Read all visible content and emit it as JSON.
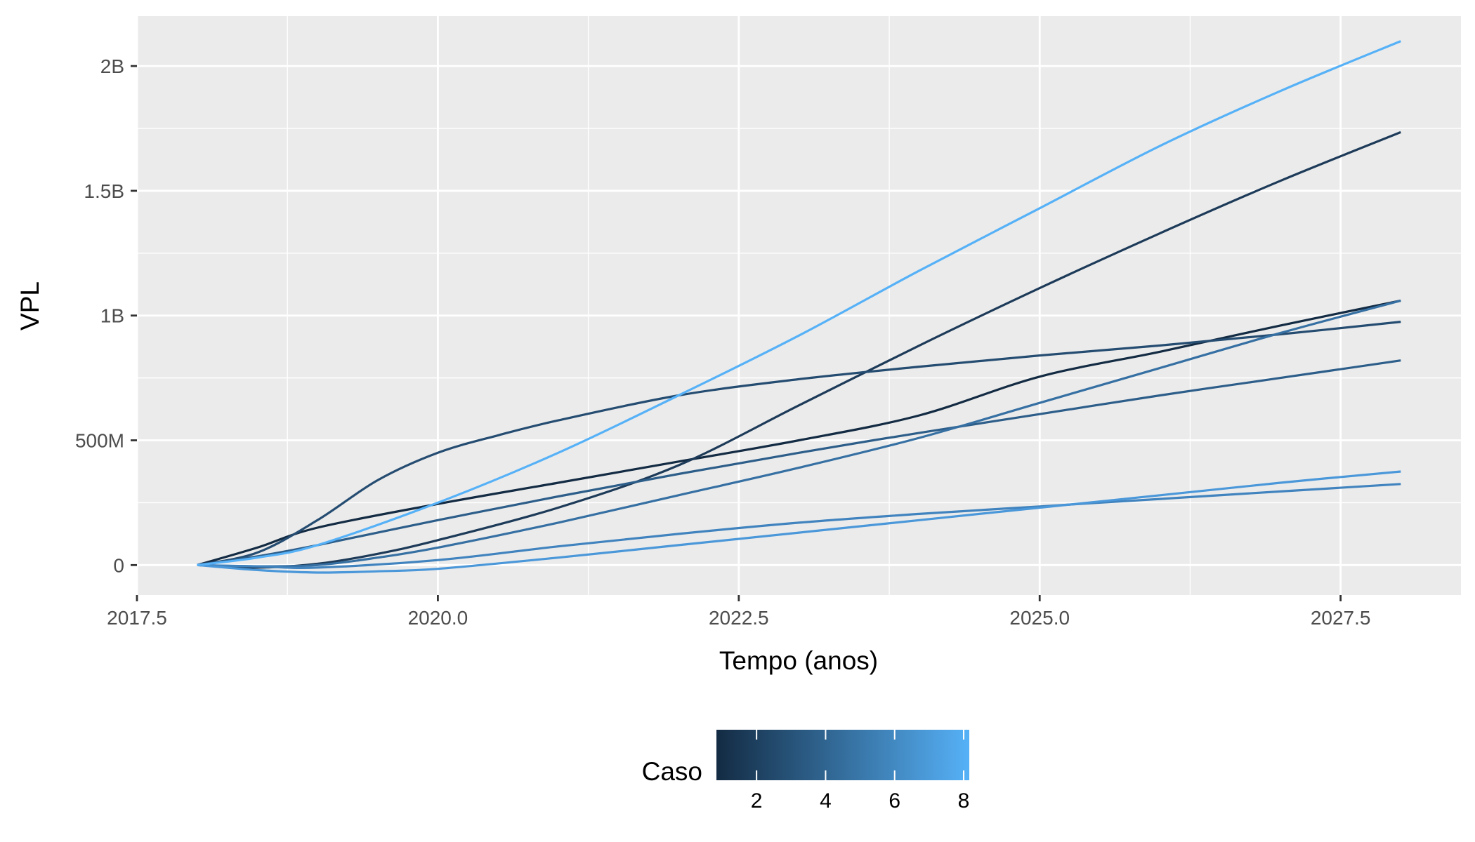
{
  "chart_data": {
    "type": "line",
    "title": "",
    "xlabel": "Tempo (anos)",
    "ylabel": "VPL",
    "xlim": [
      2017.5,
      2028.5
    ],
    "ylim": [
      -120000000,
      2200000000
    ],
    "x_ticks": [
      2017.5,
      2020.0,
      2022.5,
      2025.0,
      2027.5
    ],
    "x_tick_labels": [
      "2017.5",
      "2020.0",
      "2022.5",
      "2025.0",
      "2027.5"
    ],
    "x_minor": [
      2018.75,
      2021.25,
      2023.75,
      2026.25
    ],
    "y_ticks": [
      0,
      500000000,
      1000000000,
      1500000000,
      2000000000
    ],
    "y_tick_labels": [
      "0",
      "500M",
      "1B",
      "1.5B",
      "2B"
    ],
    "y_minor": [
      250000000,
      750000000,
      1250000000,
      1750000000
    ],
    "grid": true,
    "panel_background": "#ebebeb",
    "legend": {
      "title": "Caso",
      "type": "colorbar",
      "position": "bottom",
      "range": [
        1,
        8
      ],
      "ticks": [
        2,
        4,
        6,
        8
      ],
      "tick_labels": [
        "2",
        "4",
        "6",
        "8"
      ],
      "color_low": "#132b43",
      "color_high": "#56b1f7"
    },
    "series": [
      {
        "caso": 1,
        "color": "#132b43",
        "x": [
          2018.0,
          2018.5,
          2019.0,
          2020.0,
          2021.0,
          2022.0,
          2023.0,
          2024.0,
          2025.0,
          2026.0,
          2027.0,
          2028.0
        ],
        "y": [
          0,
          70000000,
          150000000,
          245000000,
          330000000,
          415000000,
          500000000,
          600000000,
          755000000,
          855000000,
          960000000,
          1060000000
        ]
      },
      {
        "caso": 2,
        "color": "#1d3b59",
        "x": [
          2018.0,
          2018.5,
          2019.0,
          2019.5,
          2020.0,
          2021.0,
          2022.0,
          2023.0,
          2024.0,
          2025.0,
          2026.0,
          2027.0,
          2028.0
        ],
        "y": [
          0,
          -10000000,
          5000000,
          45000000,
          100000000,
          230000000,
          400000000,
          640000000,
          880000000,
          1110000000,
          1330000000,
          1540000000,
          1735000000
        ]
      },
      {
        "caso": 3,
        "color": "#254c71",
        "x": [
          2018.0,
          2018.5,
          2019.0,
          2019.5,
          2020.0,
          2020.5,
          2021.0,
          2022.0,
          2023.0,
          2024.0,
          2025.0,
          2026.0,
          2027.0,
          2028.0
        ],
        "y": [
          0,
          50000000,
          180000000,
          340000000,
          450000000,
          520000000,
          580000000,
          680000000,
          745000000,
          795000000,
          840000000,
          880000000,
          925000000,
          975000000
        ]
      },
      {
        "caso": 4,
        "color": "#2d5e8a",
        "x": [
          2018.0,
          2018.5,
          2019.0,
          2020.0,
          2021.0,
          2022.0,
          2023.0,
          2024.0,
          2025.0,
          2026.0,
          2027.0,
          2028.0
        ],
        "y": [
          0,
          35000000,
          80000000,
          180000000,
          275000000,
          365000000,
          450000000,
          530000000,
          605000000,
          680000000,
          750000000,
          820000000
        ]
      },
      {
        "caso": 5,
        "color": "#3670a3",
        "x": [
          2018.0,
          2018.5,
          2019.0,
          2019.5,
          2020.0,
          2021.0,
          2022.0,
          2023.0,
          2024.0,
          2025.0,
          2026.0,
          2027.0,
          2028.0
        ],
        "y": [
          0,
          -5000000,
          0,
          30000000,
          70000000,
          170000000,
          280000000,
          390000000,
          510000000,
          650000000,
          790000000,
          930000000,
          1060000000
        ]
      },
      {
        "caso": 6,
        "color": "#4083be",
        "x": [
          2018.0,
          2018.5,
          2019.0,
          2020.0,
          2021.0,
          2022.0,
          2023.0,
          2024.0,
          2025.0,
          2026.0,
          2027.0,
          2028.0
        ],
        "y": [
          0,
          -5000000,
          -10000000,
          20000000,
          75000000,
          125000000,
          170000000,
          205000000,
          235000000,
          265000000,
          295000000,
          325000000
        ]
      },
      {
        "caso": 7,
        "color": "#4a97d9",
        "x": [
          2018.0,
          2018.5,
          2019.0,
          2019.5,
          2020.0,
          2021.0,
          2022.0,
          2023.0,
          2024.0,
          2025.0,
          2026.0,
          2027.0,
          2028.0
        ],
        "y": [
          0,
          -20000000,
          -30000000,
          -25000000,
          -15000000,
          30000000,
          80000000,
          130000000,
          180000000,
          230000000,
          280000000,
          330000000,
          375000000
        ]
      },
      {
        "caso": 8,
        "color": "#56b1f7",
        "x": [
          2018.0,
          2018.5,
          2019.0,
          2020.0,
          2021.0,
          2022.0,
          2023.0,
          2024.0,
          2025.0,
          2026.0,
          2027.0,
          2028.0
        ],
        "y": [
          0,
          30000000,
          80000000,
          250000000,
          450000000,
          680000000,
          920000000,
          1180000000,
          1430000000,
          1680000000,
          1900000000,
          2100000000
        ]
      }
    ]
  }
}
